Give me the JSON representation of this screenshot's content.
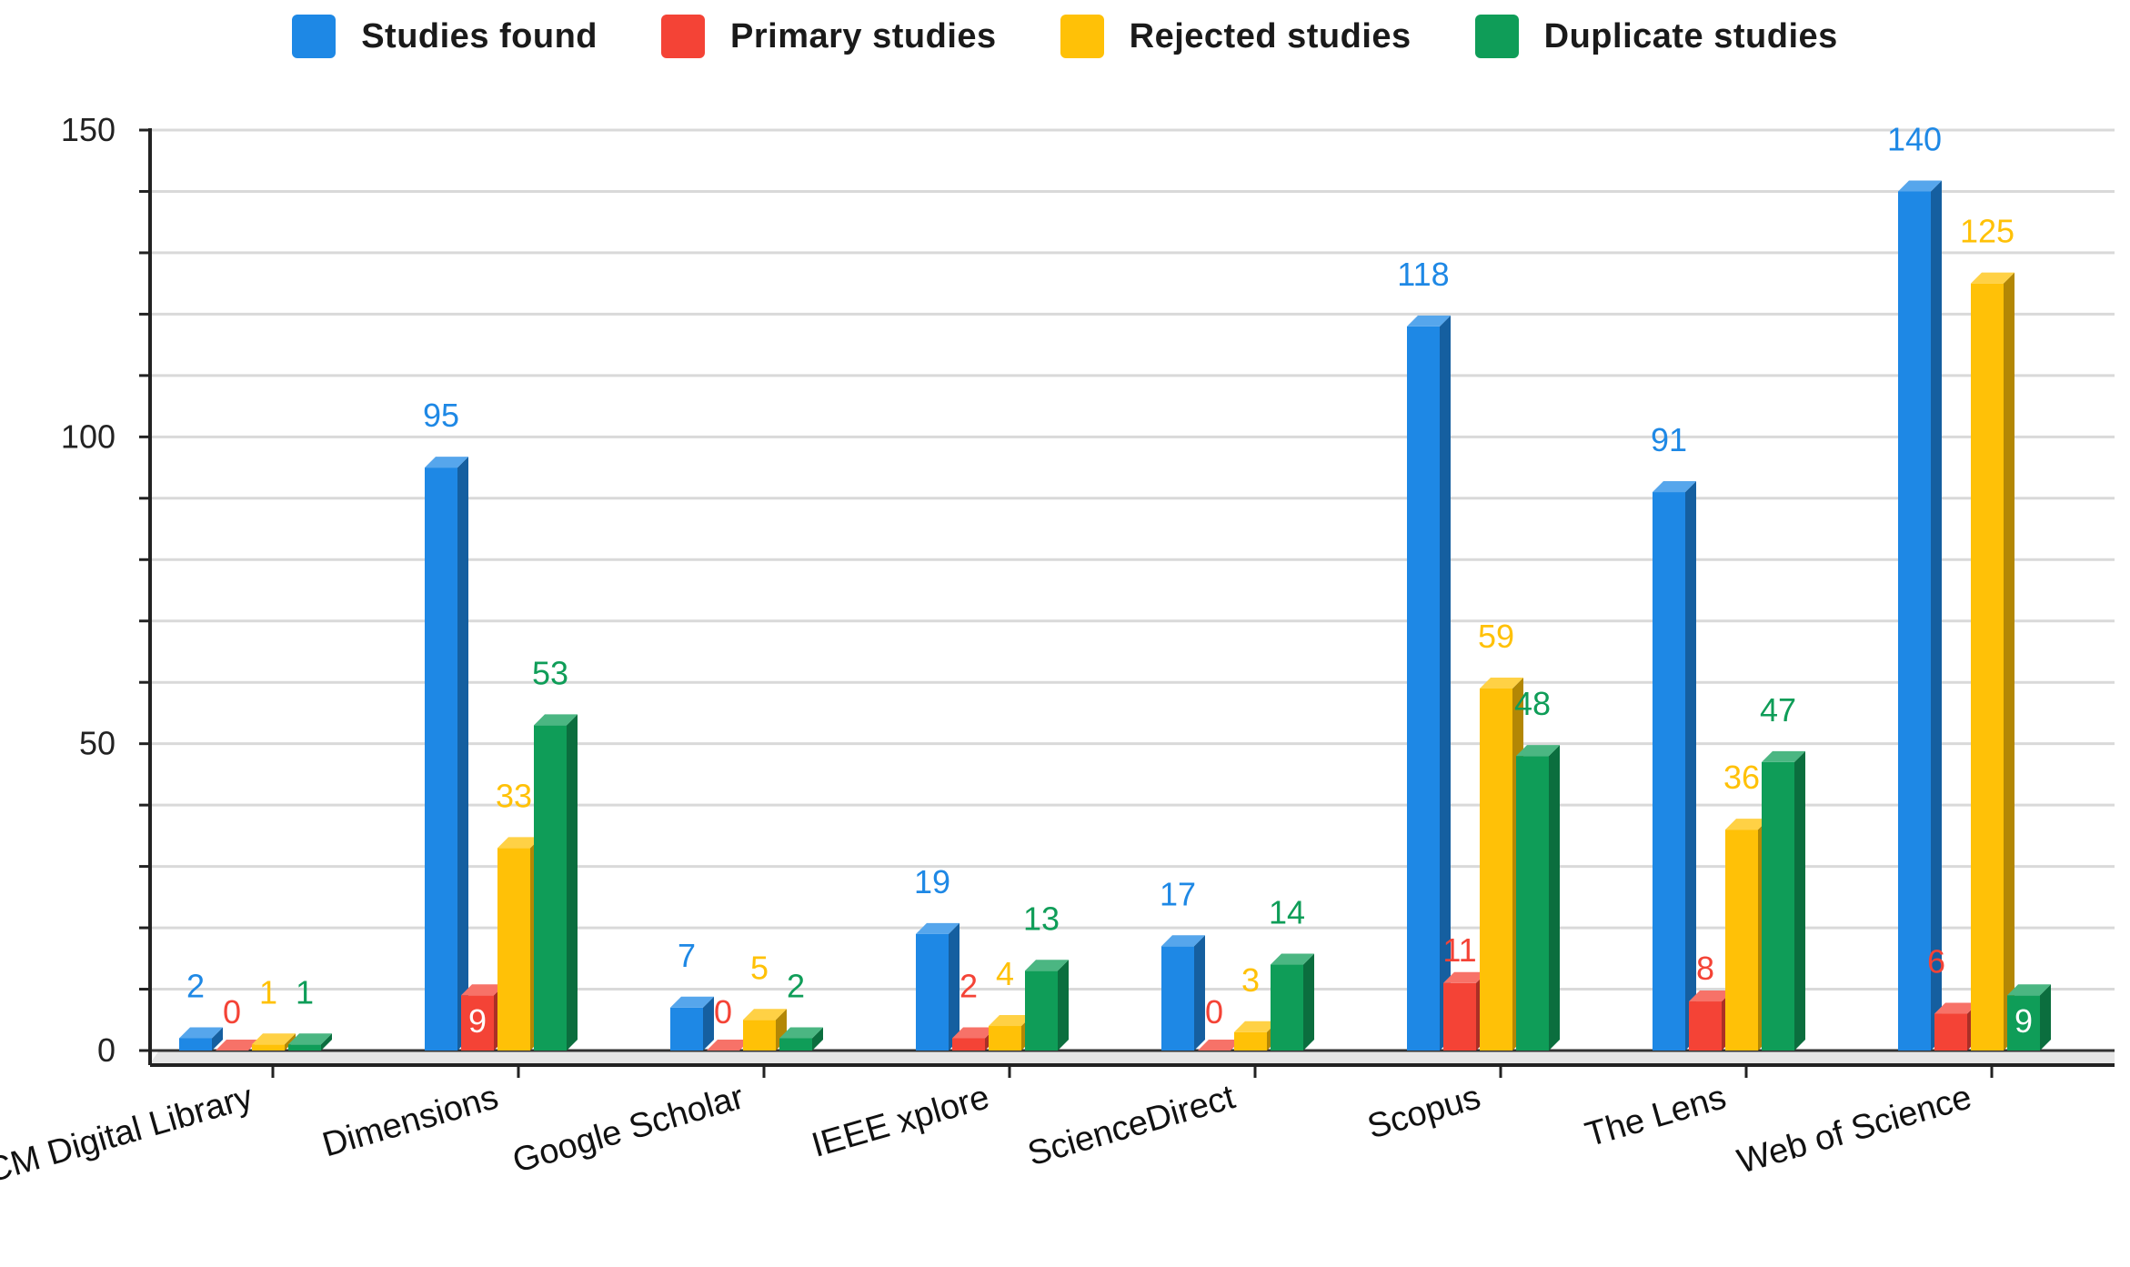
{
  "chart_data": {
    "type": "bar",
    "title": "",
    "xlabel": "",
    "ylabel": "",
    "ylim": [
      0,
      150
    ],
    "yticks": [
      0,
      50,
      100,
      150
    ],
    "grid": true,
    "legend_position": "top-center",
    "categories": [
      "ACM Digital Library",
      "Dimensions",
      "Google Scholar",
      "IEEE xplore",
      "ScienceDirect",
      "Scopus",
      "The Lens",
      "Web of Science"
    ],
    "series": [
      {
        "name": "Studies found",
        "color": "#1e88e5",
        "values": [
          2,
          95,
          7,
          19,
          17,
          118,
          91,
          140
        ]
      },
      {
        "name": "Primary studies",
        "color": "#f44336",
        "values": [
          0,
          9,
          0,
          2,
          0,
          11,
          8,
          6
        ]
      },
      {
        "name": "Rejected studies",
        "color": "#ffc107",
        "values": [
          1,
          33,
          5,
          4,
          3,
          59,
          36,
          125
        ]
      },
      {
        "name": "Duplicate studies",
        "color": "#0f9d58",
        "values": [
          1,
          53,
          2,
          13,
          14,
          48,
          47,
          9
        ]
      }
    ]
  }
}
